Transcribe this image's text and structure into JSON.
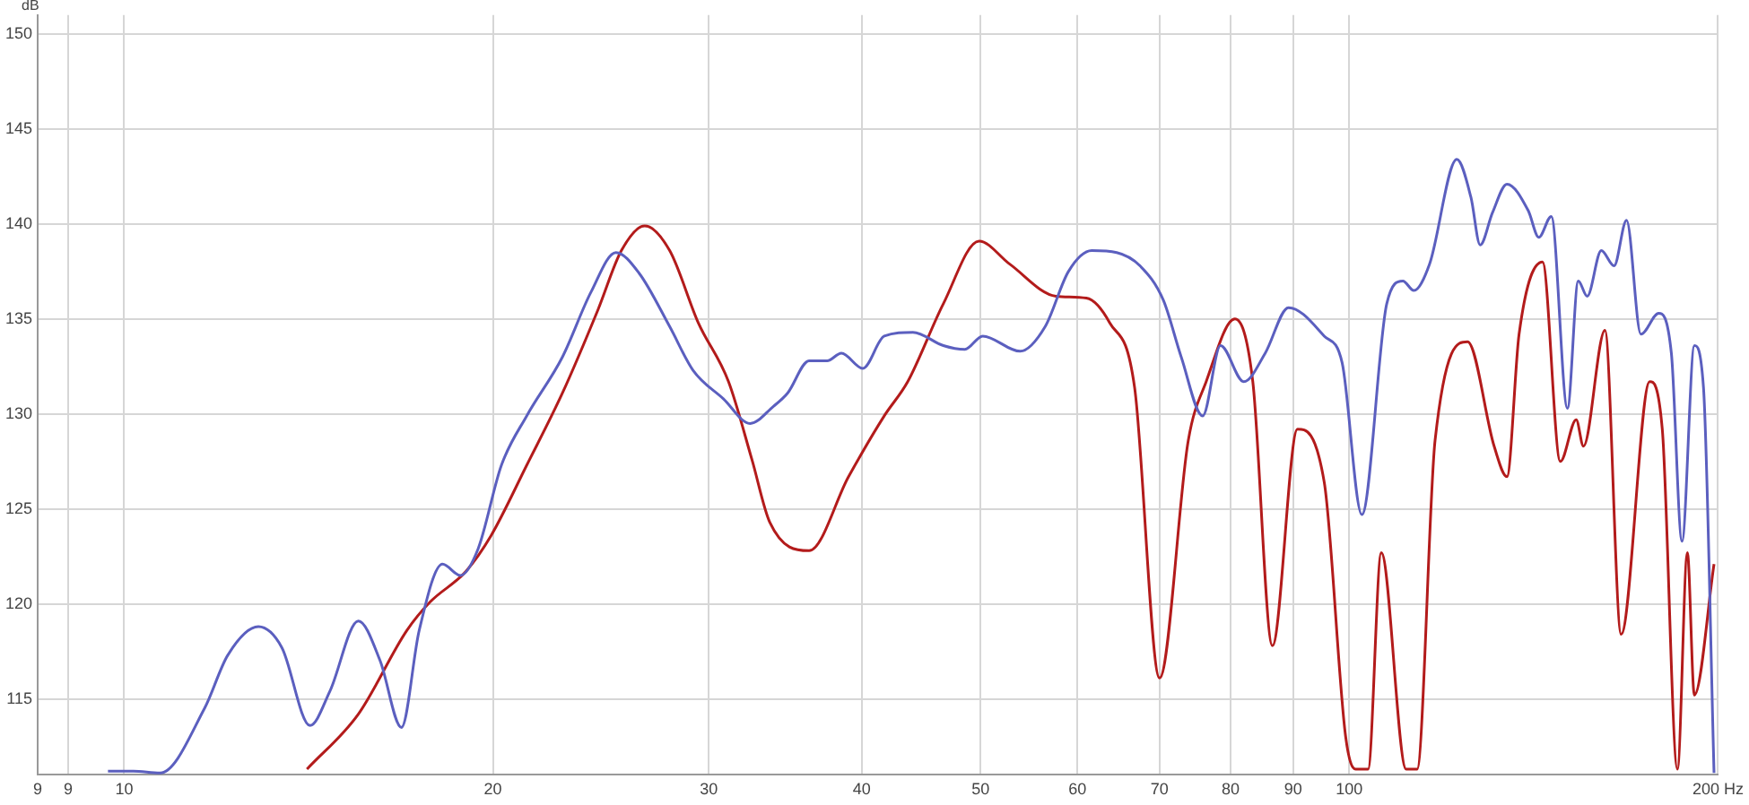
{
  "chart_data": {
    "type": "line",
    "ylabel": "dB",
    "log": "x",
    "grid": true,
    "legend": false,
    "marker": "none",
    "line_style": "solid",
    "xlim": [
      8.5,
      200
    ],
    "xticks": [
      {
        "value": 8.5,
        "label": "9"
      },
      9,
      10,
      20,
      30,
      40,
      50,
      60,
      70,
      80,
      90,
      100,
      {
        "value": 200,
        "label": "200 Hz"
      }
    ],
    "ylim": [
      111,
      151
    ],
    "yticks": [
      115,
      120,
      125,
      130,
      135,
      140,
      145,
      150
    ],
    "series": [
      {
        "color": "#5b5fbf",
        "x": [
          9.7,
          10.17,
          10.7,
          11.63,
          12.15,
          12.87,
          13.45,
          14.18,
          14.72,
          15.53,
          16.18,
          16.84,
          17.41,
          18.19,
          18.81,
          19.45,
          20.32,
          21.31,
          22.79,
          24.04,
          25.2,
          26.33,
          27.88,
          29.13,
          30.84,
          32.43,
          33.88,
          34.8,
          36.23,
          37.48,
          38.5,
          40.08,
          41.73,
          44.04,
          46.63,
          48.55,
          50.21,
          53.87,
          56.47,
          58.99,
          61.63,
          64.59,
          67.48,
          70.5,
          72.92,
          75.92,
          78.51,
          82.02,
          85.39,
          89.21,
          95.41,
          98.67,
          102.4,
          107.3,
          110.6,
          112.9,
          116.3,
          122.4,
          125.7,
          127.9,
          130.9,
          134.5,
          140,
          142.8,
          146.2,
          150.7,
          153.8,
          156.4,
          160.6,
          164.5,
          168.4,
          173,
          178.9,
          183.2,
          186.9,
          191.3,
          194.6,
          198.5
        ],
        "values": [
          111.2,
          111.2,
          111.1,
          114.5,
          117.3,
          118.8,
          117.7,
          113.6,
          115.4,
          119.1,
          117,
          113.5,
          118.6,
          122.1,
          121.5,
          122.9,
          127.3,
          129.9,
          133,
          136.4,
          138.5,
          137.4,
          134.6,
          132.3,
          130.8,
          129.5,
          130.4,
          131.1,
          132.8,
          132.8,
          133.2,
          132.4,
          134.1,
          134.3,
          133.6,
          133.4,
          134.1,
          133.3,
          134.6,
          137.5,
          138.6,
          138.5,
          137.8,
          136,
          133,
          129.9,
          133.6,
          131.7,
          133.2,
          135.6,
          134.1,
          132.7,
          124.7,
          135.8,
          137,
          136.5,
          137.9,
          143.4,
          141.4,
          138.9,
          140.6,
          142.1,
          140.7,
          139.3,
          140.4,
          130.3,
          137,
          136.2,
          138.6,
          137.8,
          140.2,
          134.2,
          135.3,
          133.2,
          123.3,
          133.6,
          131.4,
          111.1
        ]
      },
      {
        "color": "#b31b1b",
        "x": [
          14.1,
          15.53,
          17.01,
          17.77,
          19,
          19.93,
          21.31,
          22.79,
          24.37,
          25.46,
          26.6,
          27.88,
          29.42,
          31.14,
          32.54,
          33.65,
          36.23,
          39.02,
          41.73,
          43.61,
          46.63,
          49.87,
          52.8,
          57.63,
          61.01,
          63.74,
          66.8,
          70.01,
          73.89,
          76.42,
          80.66,
          83.42,
          86.55,
          90.73,
          95.41,
          99.33,
          101.2,
          103.6,
          106.2,
          111.3,
          113.6,
          117.5,
          124.9,
          131.3,
          134.5,
          137.6,
          143.8,
          148.7,
          153.2,
          155.3,
          161.7,
          166.7,
          175.9,
          180.1,
          185.3,
          188.8,
          191.3,
          198.5
        ],
        "values": [
          111.3,
          114.2,
          118.6,
          120.1,
          121.7,
          123.6,
          127.3,
          131.1,
          135.5,
          138.6,
          139.9,
          138.6,
          134.8,
          131.7,
          127.6,
          124.3,
          122.8,
          126.7,
          129.9,
          131.7,
          135.8,
          139.1,
          137.9,
          136.2,
          136.1,
          134.8,
          131.4,
          116.1,
          128.6,
          131.7,
          135,
          131.7,
          117.8,
          129.2,
          126.4,
          113,
          111.3,
          111.3,
          122.7,
          111.3,
          111.3,
          128.6,
          133.8,
          128.3,
          126.7,
          134.2,
          138,
          127.5,
          129.7,
          128.3,
          134.4,
          118.4,
          131.7,
          129.2,
          111.3,
          122.7,
          115.2,
          122.1
        ]
      }
    ]
  }
}
